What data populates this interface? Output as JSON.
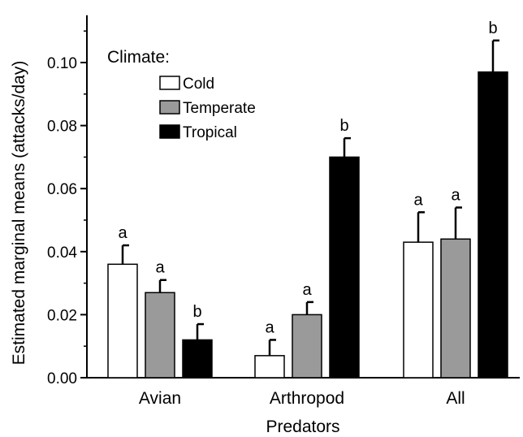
{
  "chart_data": {
    "type": "bar",
    "xlabel": "Predators",
    "ylabel": "Estimated marginal means (attacks/day)",
    "categories": [
      "Avian",
      "Arthropod",
      "All"
    ],
    "ylim": [
      0,
      0.115
    ],
    "y_ticks": [
      "0.00",
      "0.02",
      "0.04",
      "0.06",
      "0.08",
      "0.10"
    ],
    "legend": {
      "title": "Climate:",
      "placement": "top-left"
    },
    "series": [
      {
        "name": "Cold",
        "color": "#ffffff",
        "values": [
          0.036,
          0.007,
          0.043
        ],
        "errors": [
          0.006,
          0.005,
          0.0095
        ],
        "significance": [
          "a",
          "a",
          "a"
        ]
      },
      {
        "name": "Temperate",
        "color": "#9a9a9a",
        "values": [
          0.027,
          0.02,
          0.044
        ],
        "errors": [
          0.004,
          0.004,
          0.01
        ],
        "significance": [
          "a",
          "a",
          "a"
        ]
      },
      {
        "name": "Tropical",
        "color": "#000000",
        "values": [
          0.012,
          0.07,
          0.097
        ],
        "errors": [
          0.005,
          0.006,
          0.01
        ],
        "significance": [
          "b",
          "b",
          "b"
        ]
      }
    ]
  }
}
